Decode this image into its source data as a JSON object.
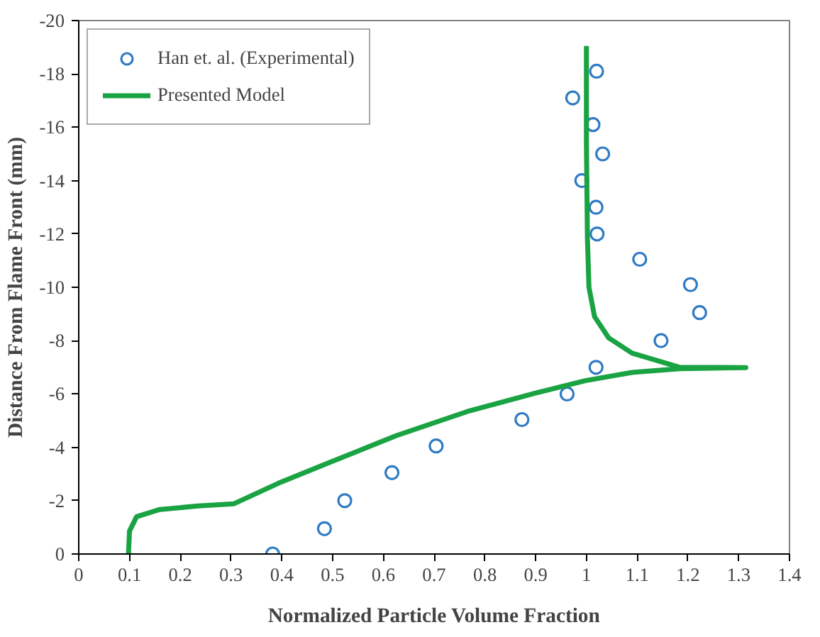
{
  "chart_data": {
    "type": "scatter",
    "xlabel": "Normalized Particle Volume Fraction",
    "ylabel": "Distance From Flame Front (mm)",
    "xlim": [
      0,
      1.4
    ],
    "ylim": [
      0,
      -20
    ],
    "xticks": [
      0,
      0.1,
      0.2,
      0.3,
      0.4,
      0.5,
      0.6,
      0.7,
      0.8,
      0.9,
      1,
      1.1,
      1.2,
      1.3,
      1.4
    ],
    "yticks": [
      -20,
      -18,
      -16,
      -14,
      -12,
      -10,
      -8,
      -6,
      -4,
      -2,
      0
    ],
    "grid": false,
    "legend": "top left",
    "series": [
      {
        "name": "Han et. al. (Experimental)",
        "marker": "circle",
        "color": "#2f7bc4",
        "x": [
          0.382,
          0.484,
          0.524,
          0.617,
          0.704,
          0.873,
          0.962,
          1.019,
          1.147,
          1.223,
          1.205,
          1.105,
          1.021,
          1.019,
          0.991,
          1.032,
          1.013,
          0.973,
          1.02
        ],
        "values": [
          0,
          -0.95,
          -2.0,
          -3.05,
          -4.05,
          -5.04,
          -6.0,
          -7.0,
          -8.0,
          -9.05,
          -10.1,
          -11.05,
          -12.0,
          -13.0,
          -14.0,
          -15.0,
          -16.1,
          -17.1,
          -18.1
        ]
      },
      {
        "name": "Presented Model",
        "type": "line",
        "color": "#1aa343",
        "line_style": "solid",
        "x": [
          0.098,
          0.1,
          0.114,
          0.16,
          0.235,
          0.305,
          0.393,
          0.486,
          0.626,
          0.765,
          0.905,
          0.998,
          1.09,
          1.184,
          1.314,
          1.184,
          1.09,
          1.044,
          1.016,
          1.005,
          1.002,
          1.0,
          1.0
        ],
        "values": [
          0,
          -0.86,
          -1.4,
          -1.67,
          -1.8,
          -1.88,
          -2.65,
          -3.37,
          -4.44,
          -5.34,
          -6.06,
          -6.5,
          -6.81,
          -6.95,
          -6.99,
          -7.0,
          -7.53,
          -8.1,
          -8.9,
          -10.0,
          -11.8,
          -15.4,
          -19.05
        ]
      }
    ]
  }
}
